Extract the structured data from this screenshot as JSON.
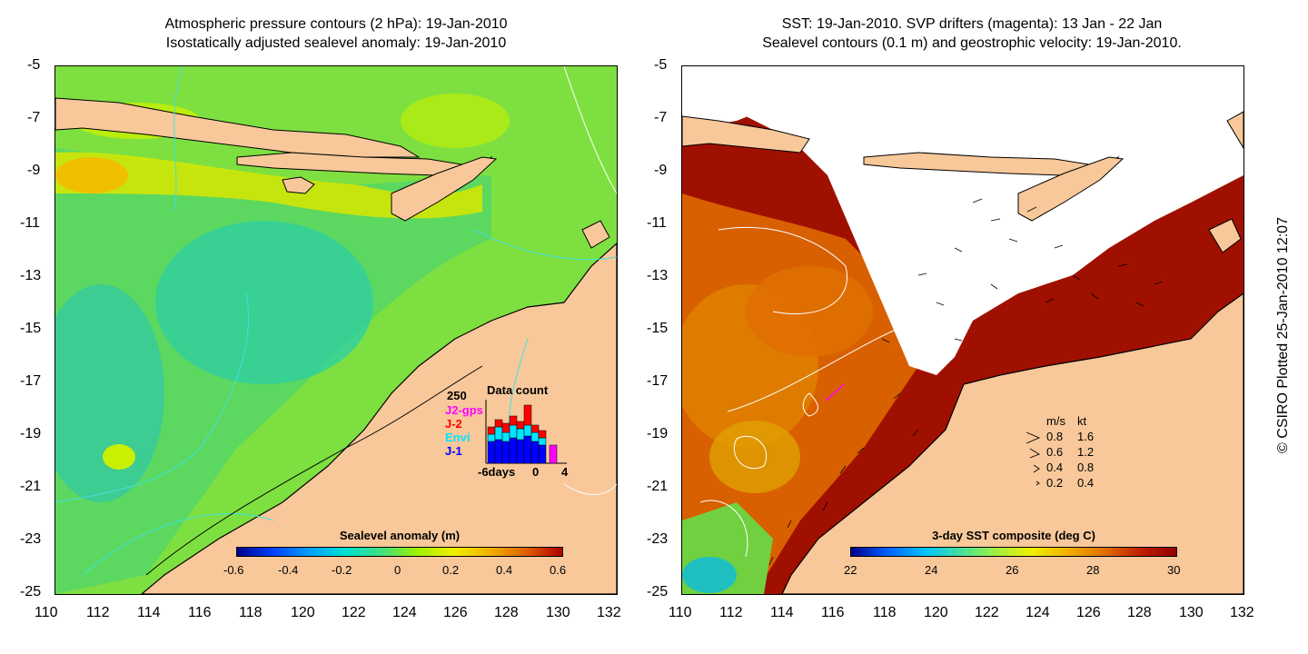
{
  "left_panel": {
    "title_line1": "Atmospheric pressure contours (2 hPa): 19-Jan-2010",
    "title_line2": "Isostatically adjusted sealevel anomaly: 19-Jan-2010",
    "colorbar": {
      "title": "Sealevel anomaly (m)",
      "ticks": [
        "-0.6",
        "-0.4",
        "-0.2",
        "0",
        "0.2",
        "0.4",
        "0.6"
      ],
      "colors": [
        "#00008b",
        "#0040ff",
        "#00a0ff",
        "#00e0d0",
        "#40e080",
        "#a0f000",
        "#f0f000",
        "#f0b000",
        "#e06000",
        "#b00000"
      ]
    },
    "data_count": {
      "title": "Data count",
      "ymax_label": "250",
      "missions": [
        {
          "name": "J2-gps",
          "color": "#ff00ff"
        },
        {
          "name": "J-2",
          "color": "#ff0000"
        },
        {
          "name": "Envi",
          "color": "#00e5ff"
        },
        {
          "name": "J-1",
          "color": "#0000ff"
        }
      ],
      "x_ticks": [
        "-6days",
        "0",
        "4"
      ]
    }
  },
  "right_panel": {
    "title_line1": "SST: 19-Jan-2010. SVP drifters (magenta): 13 Jan - 22 Jan",
    "title_line2": "Sealevel contours (0.1 m) and geostrophic velocity: 19-Jan-2010.",
    "colorbar": {
      "title": "3-day SST composite (deg C)",
      "ticks": [
        "22",
        "24",
        "26",
        "28",
        "30"
      ],
      "colors": [
        "#00008b",
        "#0060ff",
        "#00c0ff",
        "#40e0a0",
        "#a0f040",
        "#f0f000",
        "#f0b000",
        "#e07000",
        "#c02000",
        "#900000"
      ]
    },
    "velocity_legend": {
      "header_ms": "m/s",
      "header_kt": "kt",
      "rows": [
        {
          "ms": "0.8",
          "kt": "1.6"
        },
        {
          "ms": "0.6",
          "kt": "1.2"
        },
        {
          "ms": "0.4",
          "kt": "0.8"
        },
        {
          "ms": "0.2",
          "kt": "0.4"
        }
      ]
    }
  },
  "axes": {
    "lat_ticks": [
      "-5",
      "-7",
      "-9",
      "-11",
      "-13",
      "-15",
      "-17",
      "-19",
      "-21",
      "-23",
      "-25"
    ],
    "lon_ticks": [
      "110",
      "112",
      "114",
      "116",
      "118",
      "120",
      "122",
      "124",
      "126",
      "128",
      "130",
      "132"
    ]
  },
  "credit": "© CSIRO Plotted 25-Jan-2010 12:07",
  "colors": {
    "land": "#f8c89a",
    "ocean_green": "#7ee040",
    "cloud_white": "#ffffff",
    "sst_red": "#a01000"
  }
}
